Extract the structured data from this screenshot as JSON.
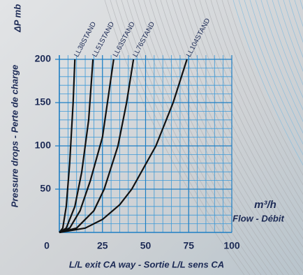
{
  "chart_data": {
    "type": "line",
    "y_unit_label": "ΔP mb",
    "y_label": "Pressure drops - Perte de charge",
    "x_unit_label": "m³/h",
    "x_flow_label": "Flow - Débit",
    "x_label": "L/L exit CA way - Sortie L/L sens CA",
    "xlim": [
      0,
      100
    ],
    "xticks": [
      0,
      25,
      50,
      75,
      100
    ],
    "ylim": [
      0,
      200
    ],
    "yticks": [
      50,
      100,
      150,
      200
    ],
    "grid": true,
    "series": [
      {
        "name": "LL38STAND",
        "color": "#111111",
        "x": [
          0,
          2,
          4,
          6,
          8,
          9
        ],
        "values": [
          0,
          5,
          30,
          80,
          150,
          200
        ]
      },
      {
        "name": "LL51STAND",
        "color": "#111111",
        "x": [
          0,
          4,
          9,
          13,
          17,
          19.5
        ],
        "values": [
          0,
          5,
          30,
          70,
          130,
          200
        ]
      },
      {
        "name": "LL63STAND",
        "color": "#111111",
        "x": [
          0,
          6,
          12,
          18,
          25,
          31.5
        ],
        "values": [
          0,
          5,
          25,
          60,
          110,
          200
        ]
      },
      {
        "name": "LL76STAND",
        "color": "#111111",
        "x": [
          0,
          10,
          20,
          26,
          34,
          39,
          43
        ],
        "values": [
          0,
          5,
          25,
          50,
          100,
          150,
          200
        ]
      },
      {
        "name": "LL104STAND",
        "color": "#111111",
        "x": [
          0,
          15,
          25,
          35,
          42,
          56,
          66,
          74
        ],
        "values": [
          0,
          5,
          15,
          32,
          50,
          100,
          150,
          200
        ]
      }
    ]
  }
}
